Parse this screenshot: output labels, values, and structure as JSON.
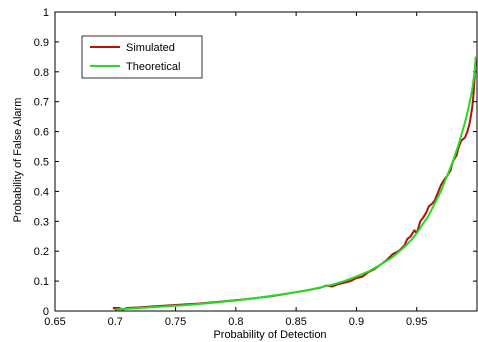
{
  "chart_data": {
    "type": "line",
    "title": "",
    "xlabel": "Probability of Detection",
    "ylabel": "Probability of False Alarm",
    "xlim": [
      0.65,
      1.0
    ],
    "ylim": [
      0,
      1
    ],
    "grid": false,
    "legend_position": "top-left",
    "xticks": [
      "0.65",
      "0.7",
      "0.75",
      "0.8",
      "0.85",
      "0.9",
      "0.95"
    ],
    "yticks": [
      "0",
      "0.1",
      "0.2",
      "0.3",
      "0.4",
      "0.5",
      "0.6",
      "0.7",
      "0.8",
      "0.9",
      "1"
    ],
    "series": [
      {
        "name": "Simulated",
        "color": "#b01010",
        "x": [
          0.698,
          0.703,
          0.706,
          0.71,
          0.72,
          0.73,
          0.75,
          0.77,
          0.79,
          0.81,
          0.83,
          0.85,
          0.86,
          0.87,
          0.875,
          0.88,
          0.885,
          0.89,
          0.895,
          0.9,
          0.905,
          0.91,
          0.915,
          0.92,
          0.925,
          0.93,
          0.935,
          0.94,
          0.942,
          0.945,
          0.948,
          0.95,
          0.953,
          0.955,
          0.958,
          0.96,
          0.963,
          0.965,
          0.968,
          0.97,
          0.973,
          0.975,
          0.978,
          0.98,
          0.983,
          0.985,
          0.987,
          0.99,
          0.992,
          0.994,
          0.996,
          0.997,
          0.998,
          0.999
        ],
        "y": [
          0.01,
          0.01,
          0.005,
          0.01,
          0.012,
          0.015,
          0.02,
          0.025,
          0.032,
          0.04,
          0.05,
          0.063,
          0.07,
          0.078,
          0.085,
          0.082,
          0.09,
          0.095,
          0.1,
          0.11,
          0.115,
          0.13,
          0.14,
          0.155,
          0.17,
          0.19,
          0.2,
          0.22,
          0.24,
          0.25,
          0.27,
          0.26,
          0.3,
          0.31,
          0.33,
          0.35,
          0.36,
          0.37,
          0.4,
          0.42,
          0.44,
          0.45,
          0.47,
          0.5,
          0.52,
          0.55,
          0.57,
          0.58,
          0.6,
          0.63,
          0.68,
          0.72,
          0.78,
          0.85
        ]
      },
      {
        "name": "Theoretical",
        "color": "#22dd22",
        "x": [
          0.7,
          0.72,
          0.74,
          0.76,
          0.78,
          0.8,
          0.82,
          0.84,
          0.86,
          0.88,
          0.89,
          0.9,
          0.91,
          0.92,
          0.93,
          0.94,
          0.945,
          0.95,
          0.955,
          0.96,
          0.965,
          0.97,
          0.975,
          0.98,
          0.985,
          0.99,
          0.993,
          0.996,
          0.998,
          0.999
        ],
        "y": [
          0.005,
          0.01,
          0.015,
          0.02,
          0.027,
          0.035,
          0.045,
          0.057,
          0.07,
          0.088,
          0.1,
          0.115,
          0.132,
          0.155,
          0.18,
          0.215,
          0.235,
          0.26,
          0.29,
          0.32,
          0.36,
          0.4,
          0.45,
          0.5,
          0.56,
          0.63,
          0.68,
          0.74,
          0.8,
          0.85
        ]
      }
    ]
  }
}
